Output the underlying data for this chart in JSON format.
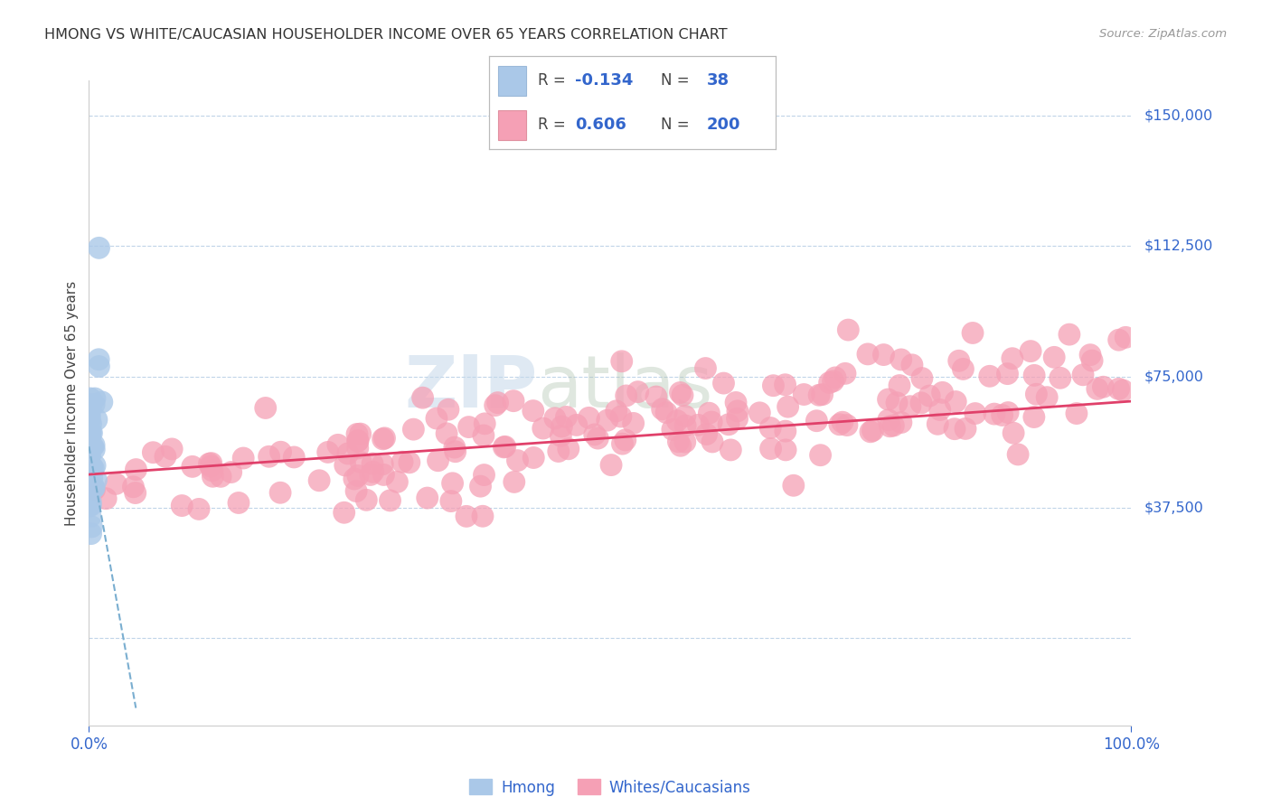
{
  "title": "HMONG VS WHITE/CAUCASIAN HOUSEHOLDER INCOME OVER 65 YEARS CORRELATION CHART",
  "source": "Source: ZipAtlas.com",
  "ylabel": "Householder Income Over 65 years",
  "xlim": [
    0.0,
    100.0
  ],
  "ylim": [
    -25000,
    160000
  ],
  "ytick_vals": [
    0,
    37500,
    75000,
    112500,
    150000
  ],
  "ytick_labels": [
    "",
    "$37,500",
    "$75,000",
    "$112,500",
    "$150,000"
  ],
  "xtick_positions": [
    0,
    100
  ],
  "xtick_labels": [
    "0.0%",
    "100.0%"
  ],
  "hmong_color": "#aac8e8",
  "white_color": "#f5a0b5",
  "hmong_line_color": "#7aaed0",
  "white_line_color": "#e0406a",
  "bg_color": "#ffffff",
  "grid_color": "#c0d4e8",
  "title_color": "#333333",
  "axis_label_color": "#3366cc",
  "legend_r1": "-0.134",
  "legend_n1": "38",
  "legend_r2": "0.606",
  "legend_n2": "200",
  "white_line_x0": 0,
  "white_line_x1": 100,
  "white_line_y0": 47000,
  "white_line_y1": 68000,
  "hmong_line_x0": 0,
  "hmong_line_x1": 4.5,
  "hmong_line_y0": 55000,
  "hmong_line_y1": -20000
}
